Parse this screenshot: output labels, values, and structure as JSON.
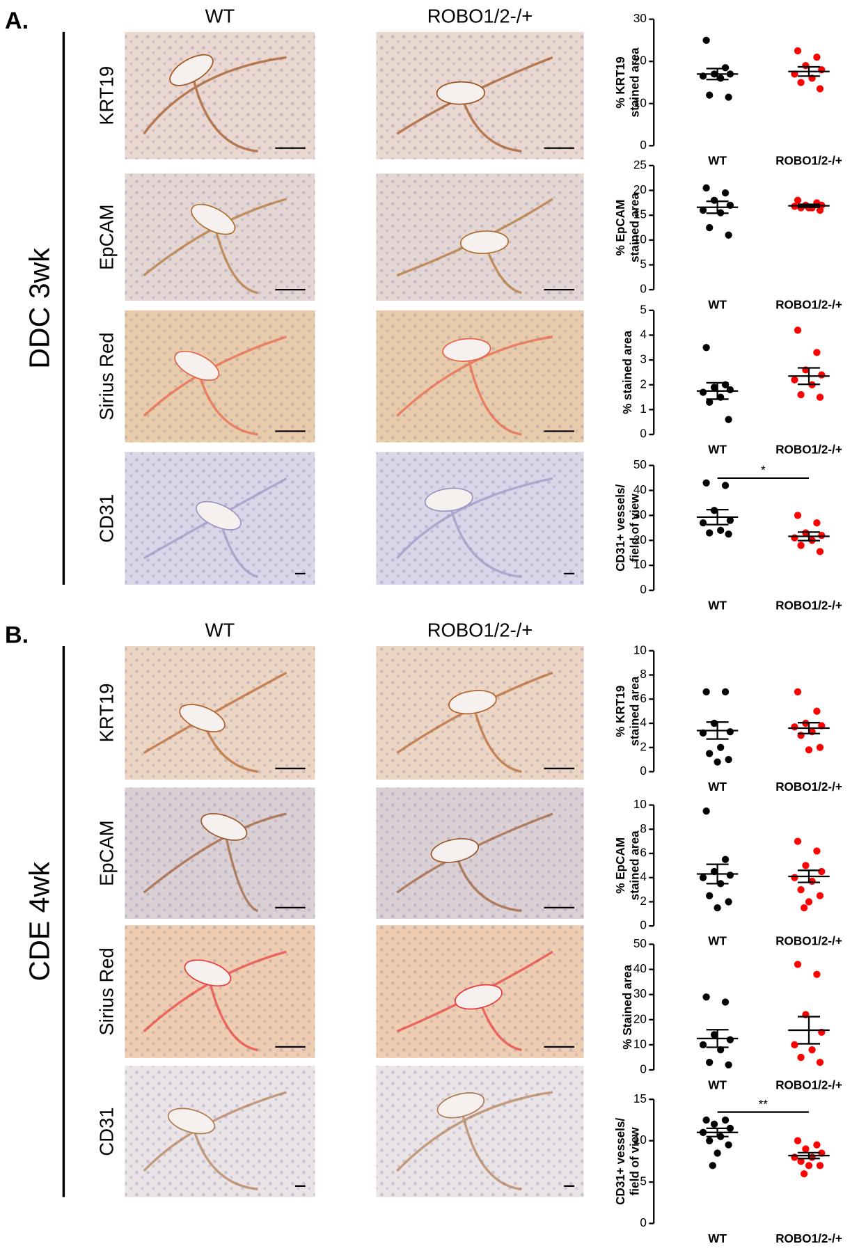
{
  "panels": [
    {
      "label": "A.",
      "condition": "DDC 3wk",
      "columns": [
        "WT",
        "ROBO1/2-/+"
      ],
      "rows": [
        "KRT19",
        "EpCAM",
        "Sirius Red",
        "CD31"
      ]
    },
    {
      "label": "B.",
      "condition": "CDE 4wk",
      "columns": [
        "WT",
        "ROBO1/2-/+"
      ],
      "rows": [
        "KRT19",
        "EpCAM",
        "Sirius Red",
        "CD31"
      ]
    }
  ],
  "chart_data": [
    {
      "type": "dot",
      "y_label": [
        "% KRT19",
        "stained area"
      ],
      "categories": [
        "WT",
        "ROBO1/2-/+"
      ],
      "ylim": [
        0,
        30
      ],
      "yticks": [
        0,
        10,
        20,
        30
      ],
      "groups": [
        {
          "color": "#000000",
          "values": [
            25,
            18.5,
            17,
            17,
            16.5,
            16,
            12,
            11.5
          ],
          "mean": 17,
          "sem": 1.3
        },
        {
          "color": "#ff0000",
          "values": [
            22.5,
            21,
            19,
            18,
            17,
            16,
            15,
            13.5
          ],
          "mean": 17.6,
          "sem": 1.1
        }
      ]
    },
    {
      "type": "dot",
      "y_label": [
        "% EpCAM",
        "stained area"
      ],
      "categories": [
        "WT",
        "ROBO1/2-/+"
      ],
      "ylim": [
        0,
        25
      ],
      "yticks": [
        0,
        5,
        10,
        15,
        20,
        25
      ],
      "groups": [
        {
          "color": "#000000",
          "values": [
            20.5,
            19.5,
            18,
            17,
            16,
            15.5,
            12.5,
            11
          ],
          "mean": 16.6,
          "sem": 1.2
        },
        {
          "color": "#ff0000",
          "values": [
            18,
            17.5,
            17,
            17,
            16.8,
            16.5,
            16.5,
            16,
            16.5
          ],
          "mean": 16.9,
          "sem": 0.3
        }
      ]
    },
    {
      "type": "dot",
      "y_label": [
        "% stained area"
      ],
      "categories": [
        "WT",
        "ROBO1/2-/+"
      ],
      "ylim": [
        0,
        5
      ],
      "yticks": [
        0,
        1,
        2,
        3,
        4,
        5
      ],
      "groups": [
        {
          "color": "#000000",
          "values": [
            3.5,
            2.0,
            1.9,
            1.8,
            1.7,
            1.5,
            1.3,
            0.6
          ],
          "mean": 1.75,
          "sem": 0.33
        },
        {
          "color": "#ff0000",
          "values": [
            4.2,
            3.3,
            2.6,
            2.4,
            2.2,
            2.0,
            1.6,
            1.5
          ],
          "mean": 2.35,
          "sem": 0.33
        }
      ]
    },
    {
      "type": "dot",
      "y_label": [
        "CD31+ vessels/",
        "field of view"
      ],
      "categories": [
        "WT",
        "ROBO1/2-/+"
      ],
      "ylim": [
        0,
        50
      ],
      "yticks": [
        0,
        10,
        20,
        30,
        40,
        50
      ],
      "annotation": "*",
      "groups": [
        {
          "color": "#000000",
          "values": [
            43,
            42,
            32,
            28,
            27,
            24,
            23,
            22.5
          ],
          "mean": 29.3,
          "sem": 3
        },
        {
          "color": "#ff0000",
          "values": [
            30,
            27,
            23,
            22,
            21,
            20,
            18,
            15.5
          ],
          "mean": 21.6,
          "sem": 1.7
        }
      ]
    },
    {
      "type": "dot",
      "y_label": [
        "% KRT19",
        "stained area"
      ],
      "categories": [
        "WT",
        "ROBO1/2-/+"
      ],
      "ylim": [
        0,
        10
      ],
      "yticks": [
        0,
        2,
        4,
        6,
        8,
        10
      ],
      "groups": [
        {
          "color": "#000000",
          "values": [
            6.6,
            6.6,
            4.0,
            3.3,
            3.2,
            2.0,
            1.5,
            1.0,
            0.8
          ],
          "mean": 3.4,
          "sem": 0.7
        },
        {
          "color": "#ff0000",
          "values": [
            6.6,
            5.0,
            4.0,
            3.8,
            3.7,
            3.3,
            3.0,
            2.0,
            1.8
          ],
          "mean": 3.6,
          "sem": 0.45
        }
      ]
    },
    {
      "type": "dot",
      "y_label": [
        "% EpCAM",
        "stained area"
      ],
      "categories": [
        "WT",
        "ROBO1/2-/+"
      ],
      "ylim": [
        0,
        10
      ],
      "yticks": [
        0,
        2,
        4,
        6,
        8,
        10
      ],
      "groups": [
        {
          "color": "#000000",
          "values": [
            9.5,
            5.5,
            4.5,
            4.2,
            4.0,
            3.5,
            2.5,
            2.0,
            1.5
          ],
          "mean": 4.3,
          "sem": 0.8
        },
        {
          "color": "#ff0000",
          "values": [
            7.0,
            6.2,
            5.0,
            4.5,
            4.0,
            3.7,
            3.0,
            2.5,
            2.0,
            1.5
          ],
          "mean": 4.1,
          "sem": 0.5
        }
      ]
    },
    {
      "type": "dot",
      "y_label": [
        "% Stained area"
      ],
      "categories": [
        "WT",
        "ROBO1/2-/+"
      ],
      "ylim": [
        0,
        50
      ],
      "yticks": [
        0,
        10,
        20,
        30,
        40,
        50
      ],
      "groups": [
        {
          "color": "#000000",
          "values": [
            29,
            27,
            14,
            12,
            10,
            8,
            3,
            2
          ],
          "mean": 12.5,
          "sem": 3.5
        },
        {
          "color": "#ff0000",
          "values": [
            42,
            38,
            22,
            15,
            10,
            8,
            5,
            3
          ],
          "mean": 15.8,
          "sem": 5.4
        }
      ]
    },
    {
      "type": "dot",
      "y_label": [
        "CD31+ vessels/",
        "field of view"
      ],
      "categories": [
        "WT",
        "ROBO1/2-/+"
      ],
      "ylim": [
        0,
        15
      ],
      "yticks": [
        0,
        5,
        10,
        15
      ],
      "annotation": "**",
      "groups": [
        {
          "color": "#000000",
          "values": [
            12.5,
            12.5,
            12,
            11.5,
            11,
            10.5,
            10,
            9.5,
            8.5,
            7
          ],
          "mean": 11,
          "sem": 0.5
        },
        {
          "color": "#ff0000",
          "values": [
            10,
            9.5,
            9,
            8.5,
            8,
            8,
            7.5,
            7,
            7,
            6
          ],
          "mean": 8.2,
          "sem": 0.35
        }
      ]
    }
  ]
}
